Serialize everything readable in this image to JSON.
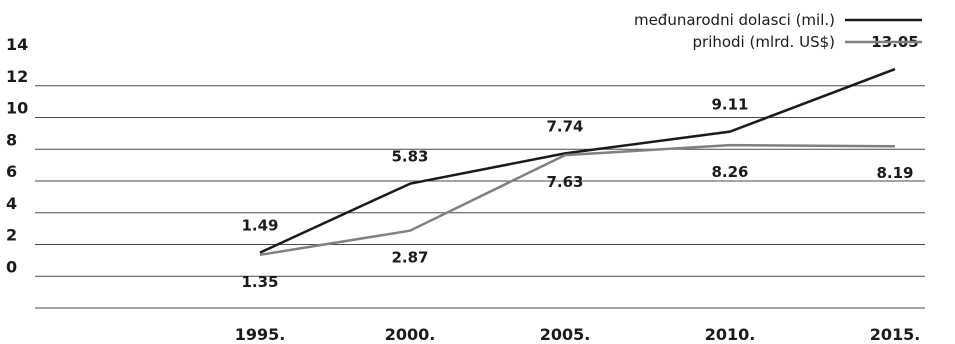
{
  "chart_data": {
    "type": "line",
    "categories": [
      "1995.",
      "2000.",
      "2005.",
      "2010.",
      "2015."
    ],
    "series": [
      {
        "name": "međunarodni dolasci (mil.)",
        "values": [
          1.49,
          5.83,
          7.74,
          9.11,
          13.05
        ],
        "color": "#1a1a1a",
        "labels_above": [
          true,
          true,
          true,
          true,
          true
        ]
      },
      {
        "name": "prihodi (mlrd. US$)",
        "values": [
          1.35,
          2.87,
          7.63,
          8.26,
          8.19
        ],
        "color": "#808080",
        "labels_above": [
          false,
          false,
          false,
          false,
          false
        ]
      }
    ],
    "y_ticks": [
      "14",
      "12",
      "10",
      "8",
      "6",
      "4",
      "2",
      "0"
    ],
    "ylim": [
      -2,
      14
    ],
    "grid": true,
    "legend_position": "top-right",
    "title": "",
    "xlabel": "",
    "ylabel": ""
  }
}
